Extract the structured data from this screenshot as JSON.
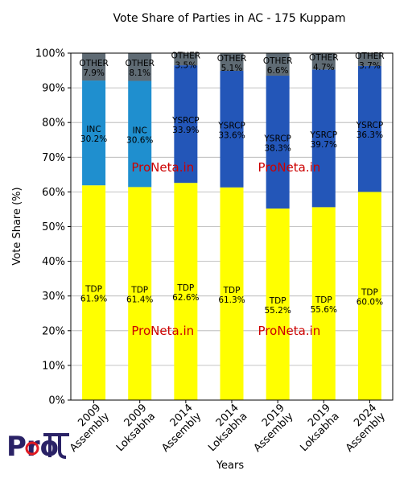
{
  "chart_data": {
    "type": "bar",
    "stacked": true,
    "title": "Vote Share of Parties in AC - 175 Kuppam",
    "xlabel": "Years",
    "ylabel": "Vote Share (%)",
    "ylim": [
      0,
      100
    ],
    "yticks": [
      "0%",
      "10%",
      "20%",
      "30%",
      "40%",
      "50%",
      "60%",
      "70%",
      "80%",
      "90%",
      "100%"
    ],
    "grid": "horizontal",
    "categories": [
      [
        "2009",
        "Assembly"
      ],
      [
        "2009",
        "Loksabha"
      ],
      [
        "2014",
        "Assembly"
      ],
      [
        "2014",
        "Loksabha"
      ],
      [
        "2019",
        "Assembly"
      ],
      [
        "2019",
        "Loksabha"
      ],
      [
        "2024",
        "Assembly"
      ]
    ],
    "bars": [
      [
        {
          "party": "TDP",
          "value": 61.9,
          "label": "61.9%"
        },
        {
          "party": "INC",
          "value": 30.2,
          "label": "30.2%"
        },
        {
          "party": "OTHER",
          "value": 7.9,
          "label": "7.9%"
        }
      ],
      [
        {
          "party": "TDP",
          "value": 61.4,
          "label": "61.4%"
        },
        {
          "party": "INC",
          "value": 30.6,
          "label": "30.6%"
        },
        {
          "party": "OTHER",
          "value": 8.1,
          "label": "8.1%"
        }
      ],
      [
        {
          "party": "TDP",
          "value": 62.6,
          "label": "62.6%"
        },
        {
          "party": "YSRCP",
          "value": 33.9,
          "label": "33.9%"
        },
        {
          "party": "OTHER",
          "value": 3.5,
          "label": "3.5%"
        }
      ],
      [
        {
          "party": "TDP",
          "value": 61.3,
          "label": "61.3%"
        },
        {
          "party": "YSRCP",
          "value": 33.6,
          "label": "33.6%"
        },
        {
          "party": "OTHER",
          "value": 5.1,
          "label": "5.1%"
        }
      ],
      [
        {
          "party": "TDP",
          "value": 55.2,
          "label": "55.2%"
        },
        {
          "party": "YSRCP",
          "value": 38.3,
          "label": "38.3%"
        },
        {
          "party": "OTHER",
          "value": 6.6,
          "label": "6.6%"
        }
      ],
      [
        {
          "party": "TDP",
          "value": 55.6,
          "label": "55.6%"
        },
        {
          "party": "YSRCP",
          "value": 39.7,
          "label": "39.7%"
        },
        {
          "party": "OTHER",
          "value": 4.7,
          "label": "4.7%"
        }
      ],
      [
        {
          "party": "TDP",
          "value": 60.0,
          "label": "60.0%"
        },
        {
          "party": "YSRCP",
          "value": 36.3,
          "label": "36.3%"
        },
        {
          "party": "OTHER",
          "value": 3.7,
          "label": "3.7%"
        }
      ]
    ],
    "party_colors": {
      "TDP": "#ffff00",
      "INC": "#1f8fcf",
      "YSRCP": "#2356b8",
      "OTHER": "#5f6b74"
    },
    "watermark": "ProNeta.in",
    "watermark_color": "#cc0000"
  },
  "logo": {
    "text": "Pro"
  }
}
